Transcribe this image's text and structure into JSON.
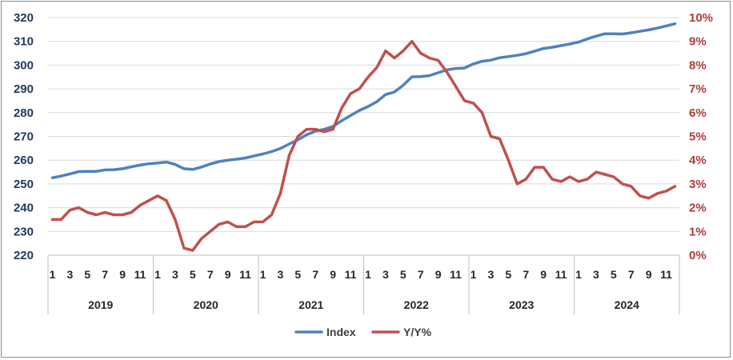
{
  "chart_data": {
    "type": "line",
    "title": "",
    "xlabel": "",
    "ylabel": "",
    "years": [
      "2019",
      "2020",
      "2021",
      "2022",
      "2023",
      "2024"
    ],
    "month_labels": [
      "1",
      "3",
      "5",
      "7",
      "9",
      "11"
    ],
    "y_left": {
      "min": 220,
      "max": 320,
      "step": 10
    },
    "y_right": {
      "min": 0,
      "max": 10,
      "step": 1,
      "suffix": "%"
    },
    "legend": {
      "position": "bottom"
    },
    "grid": true,
    "series": [
      {
        "name": "Index",
        "axis": "left",
        "color": "#4f81bd",
        "values": [
          252.6,
          253.3,
          254.2,
          255.2,
          255.3,
          255.3,
          255.9,
          256.0,
          256.4,
          257.2,
          257.9,
          258.5,
          258.8,
          259.2,
          258.2,
          256.4,
          256.1,
          257.1,
          258.4,
          259.4,
          260.0,
          260.4,
          260.9,
          261.8,
          262.6,
          263.6,
          264.9,
          266.8,
          268.6,
          270.7,
          272.2,
          273.0,
          274.2,
          276.6,
          278.8,
          280.9,
          282.6,
          284.6,
          287.6,
          288.7,
          291.5,
          295.1,
          295.2,
          295.6,
          296.8,
          298.0,
          298.6,
          298.8,
          300.5,
          301.6,
          302.1,
          303.1,
          303.6,
          304.1,
          304.8,
          305.9,
          307.0,
          307.5,
          308.2,
          308.9,
          309.7,
          311.0,
          312.2,
          313.2,
          313.2,
          313.1,
          313.6,
          314.2,
          314.8,
          315.6,
          316.5,
          317.4
        ]
      },
      {
        "name": "Y/Y%",
        "axis": "right",
        "color": "#c0504d",
        "values": [
          1.5,
          1.5,
          1.9,
          2.0,
          1.8,
          1.7,
          1.8,
          1.7,
          1.7,
          1.8,
          2.1,
          2.3,
          2.5,
          2.3,
          1.5,
          0.3,
          0.2,
          0.7,
          1.0,
          1.3,
          1.4,
          1.2,
          1.2,
          1.4,
          1.4,
          1.7,
          2.6,
          4.2,
          5.0,
          5.3,
          5.3,
          5.2,
          5.3,
          6.2,
          6.8,
          7.0,
          7.5,
          7.9,
          8.6,
          8.3,
          8.6,
          9.0,
          8.5,
          8.3,
          8.2,
          7.7,
          7.1,
          6.5,
          6.4,
          6.0,
          5.0,
          4.9,
          4.0,
          3.0,
          3.2,
          3.7,
          3.7,
          3.2,
          3.1,
          3.3,
          3.1,
          3.2,
          3.5,
          3.4,
          3.3,
          3.0,
          2.9,
          2.5,
          2.4,
          2.6,
          2.7,
          2.9
        ]
      }
    ]
  }
}
